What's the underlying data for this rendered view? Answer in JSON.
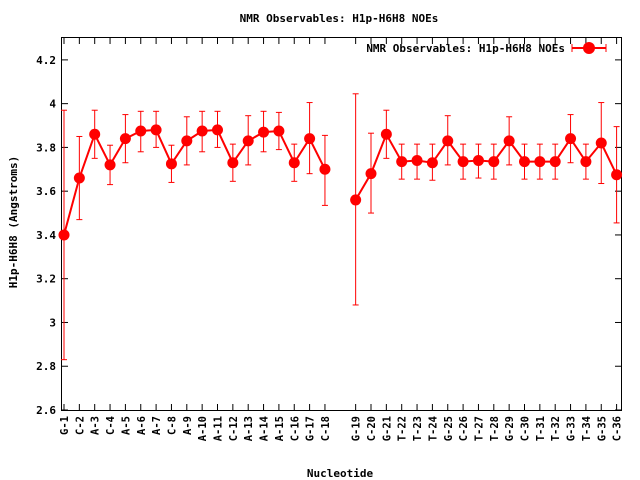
{
  "chart_data": {
    "type": "line",
    "title": "NMR Observables: H1p-H6H8 NOEs",
    "xlabel": "Nucleotide",
    "ylabel": "H1p-H6H8 (Angstroms)",
    "ylim": [
      2.6,
      4.3
    ],
    "yticks": [
      "2.6",
      "2.8",
      "3",
      "3.2",
      "3.4",
      "3.6",
      "3.8",
      "4",
      "4.2"
    ],
    "legend": {
      "position": "top-right",
      "entry": "NMR Observables: H1p-H6H8 NOEs"
    },
    "grid": false,
    "color": "#ff0000",
    "segments": [
      {
        "categories": [
          "G-1",
          "C-2",
          "A-3",
          "C-4",
          "A-5",
          "A-6",
          "A-7",
          "C-8",
          "A-9",
          "A-10",
          "A-11",
          "C-12",
          "A-13",
          "A-14",
          "A-15",
          "C-16",
          "G-17",
          "C-18"
        ],
        "values": [
          3.4,
          3.66,
          3.86,
          3.72,
          3.84,
          3.875,
          3.88,
          3.725,
          3.83,
          3.875,
          3.88,
          3.73,
          3.83,
          3.87,
          3.875,
          3.73,
          3.84,
          3.7
        ],
        "error_low": [
          2.83,
          3.47,
          3.75,
          3.63,
          3.73,
          3.78,
          3.8,
          3.64,
          3.72,
          3.78,
          3.8,
          3.645,
          3.72,
          3.78,
          3.79,
          3.645,
          3.68,
          3.535
        ],
        "error_high": [
          3.97,
          3.85,
          3.97,
          3.81,
          3.95,
          3.965,
          3.965,
          3.81,
          3.94,
          3.965,
          3.965,
          3.815,
          3.945,
          3.965,
          3.96,
          3.815,
          4.005,
          3.855
        ]
      },
      {
        "categories": [
          "G-19",
          "C-20",
          "G-21",
          "T-22",
          "T-23",
          "T-24",
          "G-25",
          "C-26",
          "T-27",
          "T-28",
          "G-29",
          "C-30",
          "T-31",
          "T-32",
          "G-33",
          "T-34",
          "G-35",
          "C-36"
        ],
        "values": [
          3.56,
          3.68,
          3.86,
          3.735,
          3.74,
          3.73,
          3.83,
          3.735,
          3.74,
          3.735,
          3.83,
          3.735,
          3.735,
          3.735,
          3.84,
          3.735,
          3.82,
          3.675
        ],
        "error_low": [
          3.08,
          3.5,
          3.75,
          3.655,
          3.655,
          3.65,
          3.72,
          3.655,
          3.66,
          3.655,
          3.72,
          3.655,
          3.655,
          3.655,
          3.73,
          3.655,
          3.635,
          3.455
        ],
        "error_high": [
          4.045,
          3.865,
          3.97,
          3.815,
          3.815,
          3.815,
          3.945,
          3.815,
          3.815,
          3.815,
          3.94,
          3.815,
          3.815,
          3.815,
          3.95,
          3.815,
          4.005,
          3.895
        ]
      }
    ]
  }
}
